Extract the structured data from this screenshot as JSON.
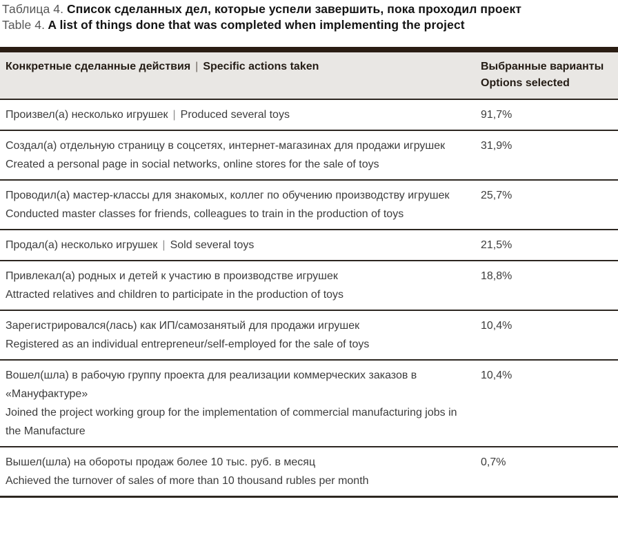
{
  "title": {
    "ru_prefix": "Таблица 4.",
    "ru_main": " Список сделанных дел, которые успели завершить, пока проходил проект",
    "en_prefix": "Table 4.",
    "en_main": " A list of things done that was completed when implementing the project"
  },
  "table": {
    "header": {
      "actions_ru": "Конкретные сделанные действия",
      "pipe": "|",
      "actions_en": "Specific actions taken",
      "options_line1": "Выбранные варианты",
      "options_line2": "Options selected"
    },
    "rows": [
      {
        "ru": "Произвел(а) несколько игрушек",
        "en": "Produced several toys",
        "inline": true,
        "value": "91,7%"
      },
      {
        "ru": "Создал(а) отдельную страницу в соцсетях, интернет-магазинах для продажи игрушек",
        "en": "Created a personal page in social networks, online stores for the sale of toys",
        "inline": false,
        "value": "31,9%"
      },
      {
        "ru": "Проводил(а) мастер-классы для знакомых, коллег по обучению производству игрушек",
        "en": "Conducted master classes for friends, colleagues to train in the production of toys",
        "inline": false,
        "value": "25,7%"
      },
      {
        "ru": "Продал(а) несколько игрушек",
        "en": "Sold several toys",
        "inline": true,
        "value": "21,5%"
      },
      {
        "ru": "Привлекал(а) родных и детей к участию в производстве игрушек",
        "en": "Attracted relatives and children to participate in the production of toys",
        "inline": false,
        "value": "18,8%"
      },
      {
        "ru": "Зарегистрировался(лась) как ИП/самозанятый для продажи игрушек",
        "en": "Registered as an individual entrepreneur/self-employed for the sale of toys",
        "inline": false,
        "value": "10,4%"
      },
      {
        "ru": "Вошел(шла) в рабочую группу проекта для реализации коммерческих заказов в «Мануфактуре»",
        "en": "Joined the project working group for the implementation of commercial manufacturing jobs in the Manufacture",
        "inline": false,
        "value": "10,4%"
      },
      {
        "ru": "Вышел(шла) на обороты продаж более 10 тыс. руб. в месяц",
        "en": "Achieved the turnover of sales of more than 10 thousand rubles per month",
        "inline": false,
        "value": "0,7%"
      }
    ]
  },
  "colors": {
    "accent_bar": "#2a1d13",
    "header_bg": "#e9e7e4",
    "rule": "#2c2620",
    "body_text": "#3c3c3c",
    "header_text": "#241c15",
    "title_prefix": "#575757",
    "title_main": "#141414",
    "pipe": "#8f8f8f"
  }
}
